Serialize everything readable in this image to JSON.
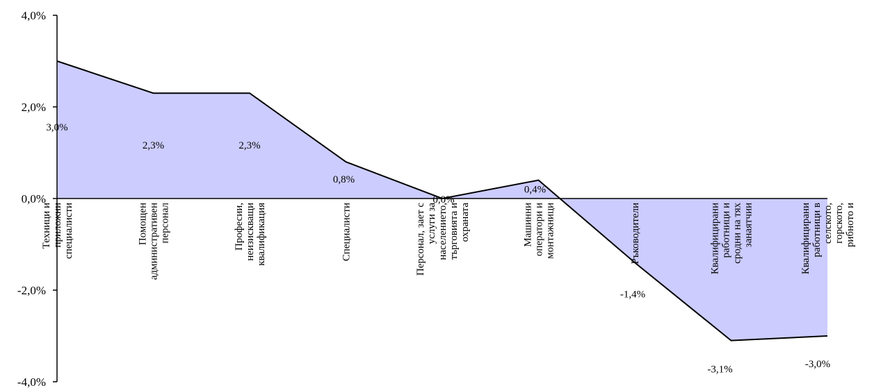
{
  "chart_data": {
    "type": "area",
    "categories": [
      [
        "Техници и",
        "приложни",
        "специалисти"
      ],
      [
        "Помощен",
        "административен",
        "персонал"
      ],
      [
        "Професии,",
        "неизискващи",
        "квалификация"
      ],
      [
        "Специалисти"
      ],
      [
        "Персонал, зает с",
        "услуги за",
        "населението,",
        "търговията и",
        "охраната"
      ],
      [
        "Машинни",
        "оператори и",
        "монтажници"
      ],
      [
        "Ръководители"
      ],
      [
        "Квалифицирани",
        "работници и",
        "сродни на тях",
        "занаятчии"
      ],
      [
        "Квалифицирани",
        "работници в",
        "селското,",
        "горското,",
        "рибното и"
      ]
    ],
    "values": [
      3.0,
      2.3,
      2.3,
      0.8,
      0.0,
      0.4,
      -1.4,
      -3.1,
      -3.0
    ],
    "data_labels": [
      "3,0%",
      "2,3%",
      "2,3%",
      "0,8%",
      "0,0%",
      "0,4%",
      "-1,4%",
      "-3,1%",
      "-3,0%"
    ],
    "y_ticks": [
      "4,0%",
      "2,0%",
      "0,0%",
      "-2,0%",
      "-4,0%"
    ],
    "ylim": [
      -4,
      4
    ],
    "title": "",
    "xlabel": "",
    "ylabel": "",
    "grid": false,
    "colors": {
      "fill": "#ccccff",
      "line": "#000000",
      "axis": "#000000"
    }
  }
}
